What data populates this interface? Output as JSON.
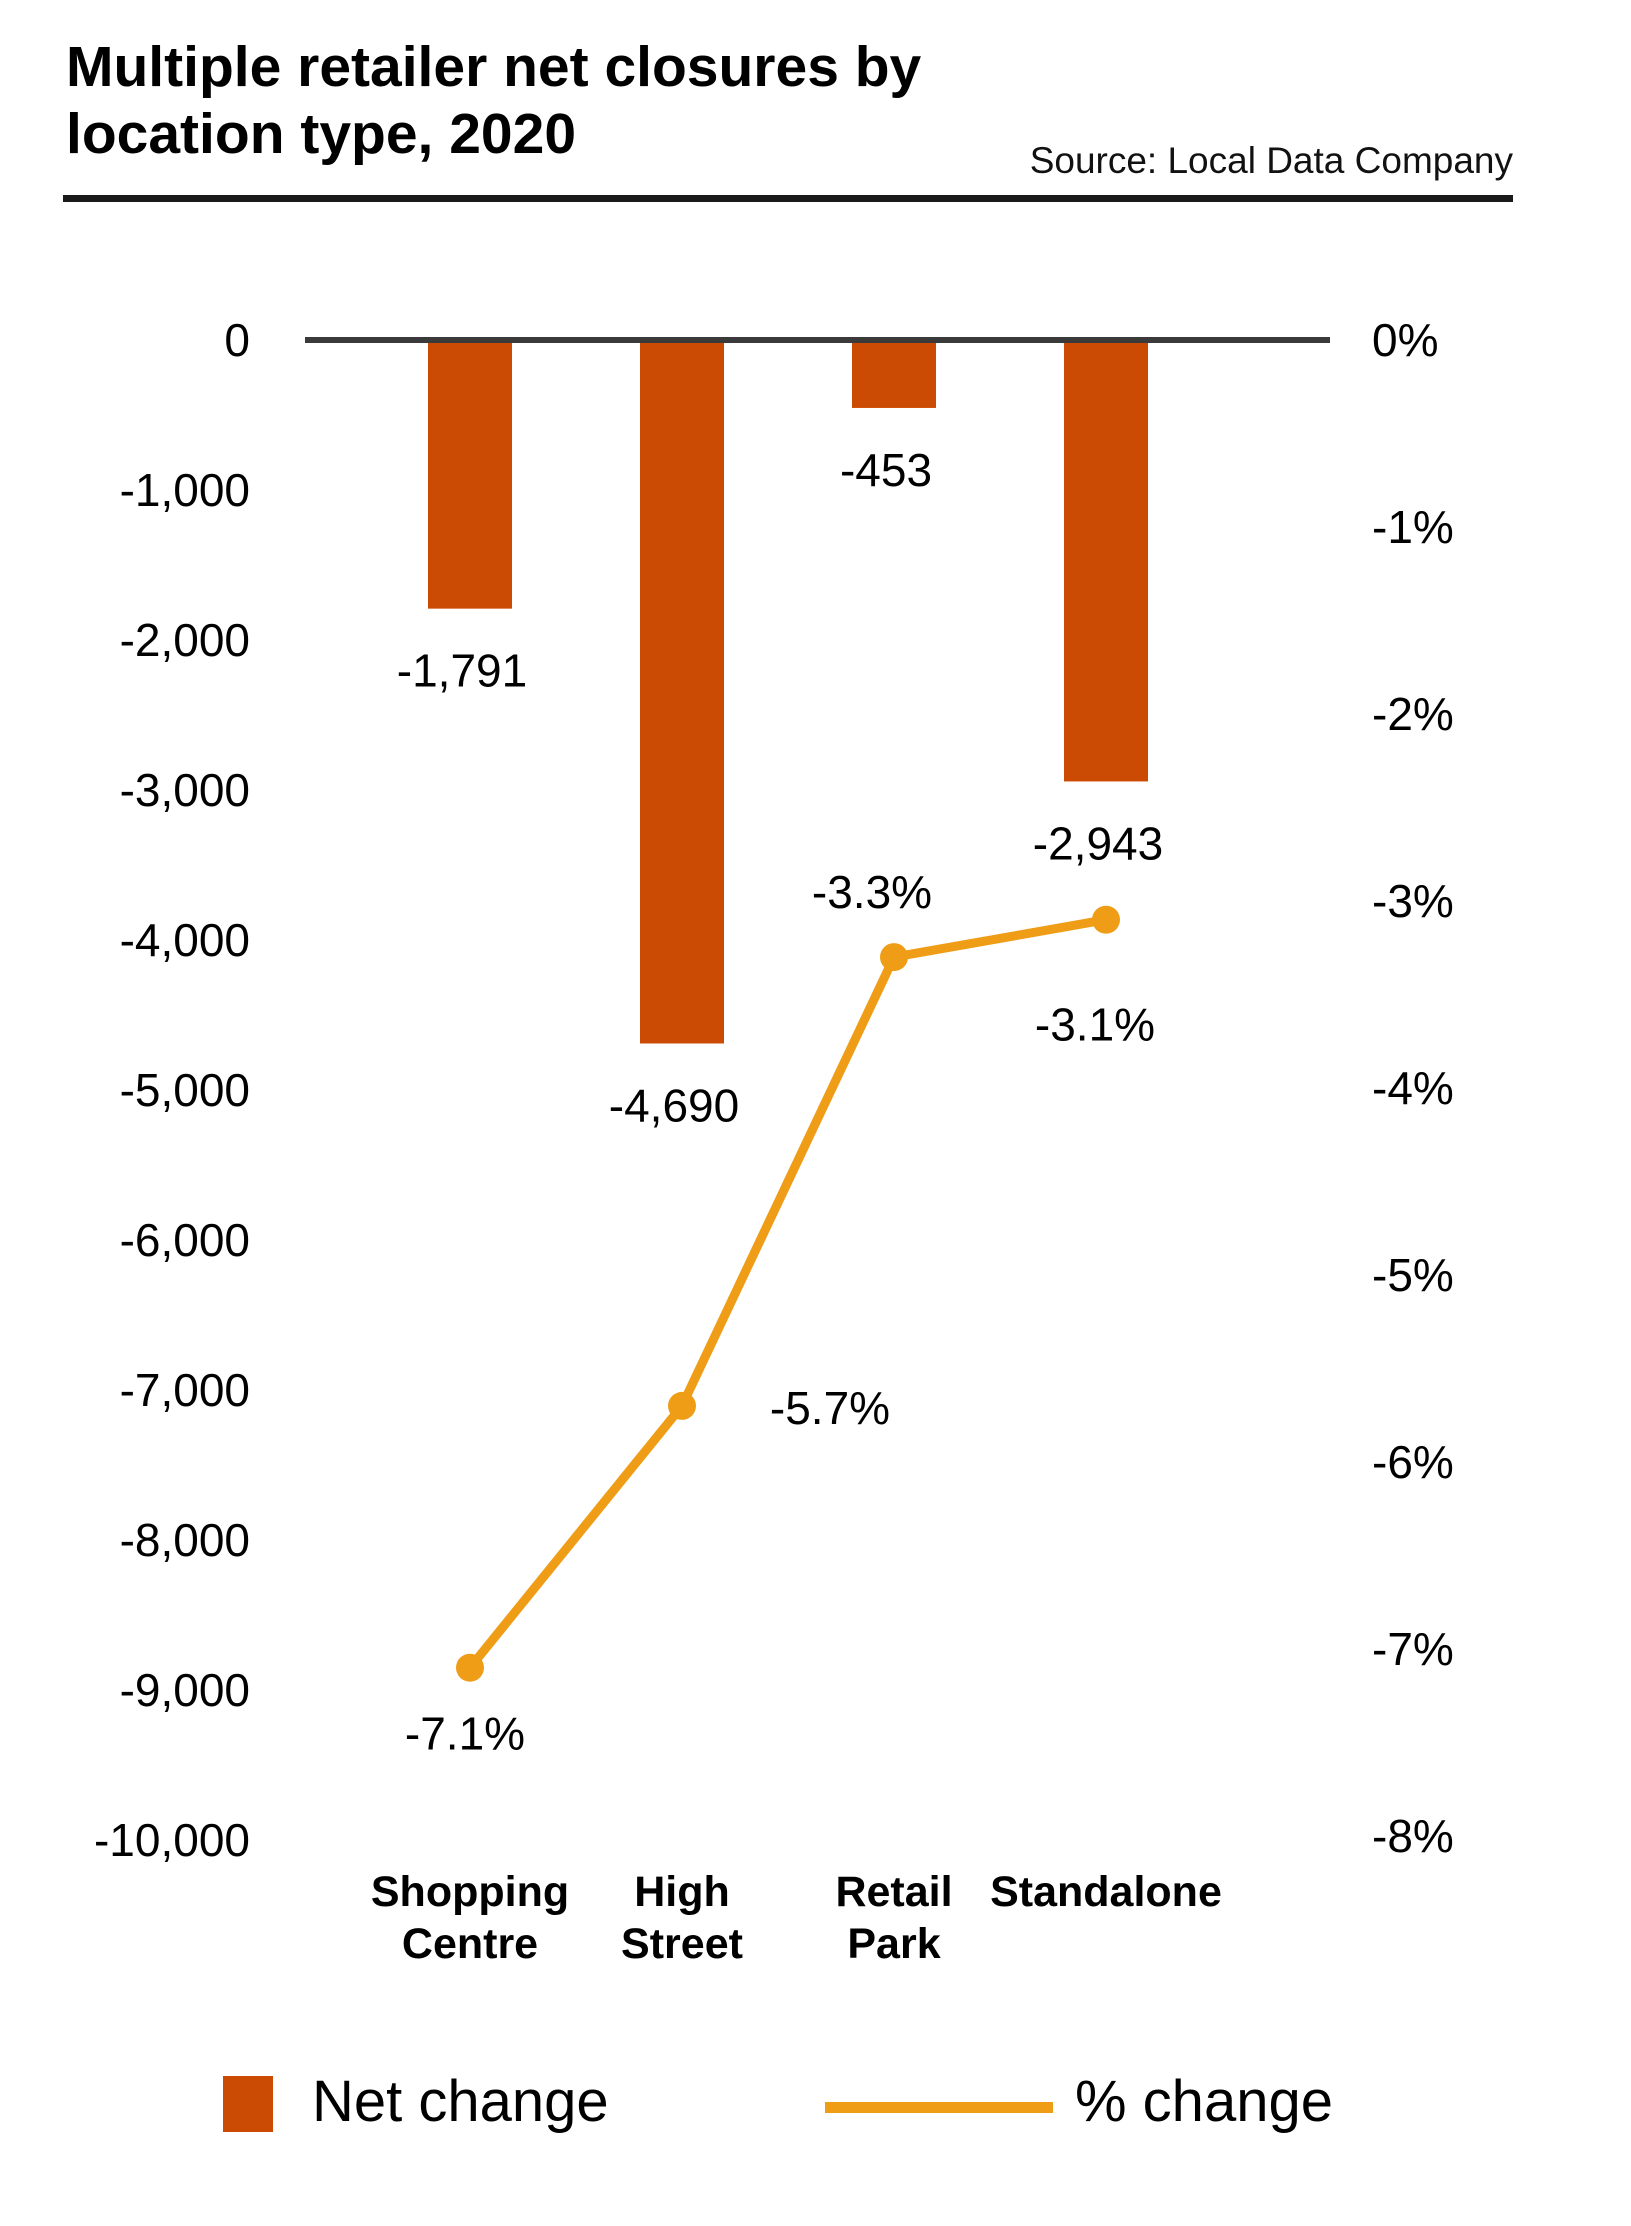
{
  "header": {
    "title_line1": "Multiple retailer net closures by",
    "title_line2": "location type, 2020",
    "source": "Source: Local Data Company"
  },
  "colors": {
    "bar": "#cc4b04",
    "line": "#ef9d16",
    "axis_line": "#3a3a3a",
    "rule": "#1a1a1a",
    "text": "#000000"
  },
  "chart_data": {
    "type": "bar",
    "title": "Multiple retailer net closures by location type, 2020",
    "source": "Source: Local Data Company",
    "categories": [
      "Shopping Centre",
      "High Street",
      "Retail Park",
      "Standalone"
    ],
    "category_label_lines": [
      [
        "Shopping",
        "Centre"
      ],
      [
        "High",
        "Street"
      ],
      [
        "Retail",
        "Park"
      ],
      [
        "Standalone"
      ]
    ],
    "series": [
      {
        "name": "Net change",
        "type": "bar",
        "axis": "left",
        "color": "#cc4b04",
        "values": [
          -1791,
          -4690,
          -453,
          -2943
        ],
        "labels": [
          "-1,791",
          "-4,690",
          "-453",
          "-2,943"
        ]
      },
      {
        "name": "% change",
        "type": "line",
        "axis": "right",
        "color": "#ef9d16",
        "values": [
          -7.1,
          -5.7,
          -3.3,
          -3.1
        ],
        "labels": [
          "-7.1%",
          "-5.7%",
          "-3.3%",
          "-3.1%"
        ]
      }
    ],
    "left_axis": {
      "ticks": [
        "0",
        "-1,000",
        "-2,000",
        "-3,000",
        "-4,000",
        "-5,000",
        "-6,000",
        "-7,000",
        "-8,000",
        "-9,000",
        "-10,000"
      ],
      "tick_values": [
        0,
        -1000,
        -2000,
        -3000,
        -4000,
        -5000,
        -6000,
        -7000,
        -8000,
        -9000,
        -10000
      ],
      "range": [
        0,
        -10000
      ]
    },
    "right_axis": {
      "ticks": [
        "0%",
        "-1%",
        "-2%",
        "-3%",
        "-4%",
        "-5%",
        "-6%",
        "-7%",
        "-8%"
      ],
      "tick_values": [
        0,
        -1,
        -2,
        -3,
        -4,
        -5,
        -6,
        -7,
        -8
      ],
      "range": [
        0,
        -8
      ]
    },
    "grid": false,
    "legend_position": "bottom"
  },
  "legend": {
    "items": [
      {
        "label": "Net change",
        "swatch": "bar-square"
      },
      {
        "label": "% change",
        "swatch": "line-segment"
      }
    ]
  }
}
